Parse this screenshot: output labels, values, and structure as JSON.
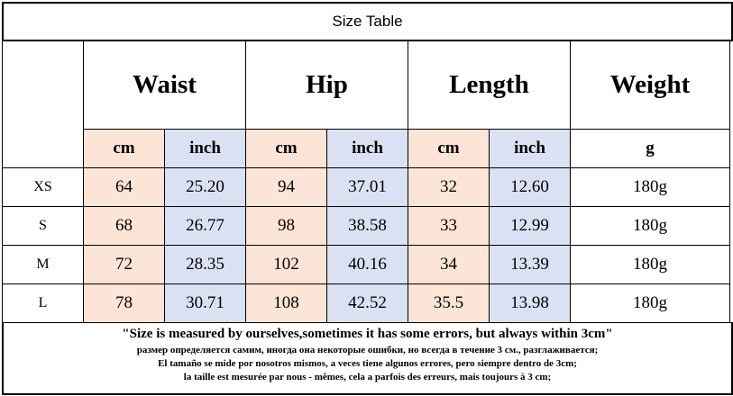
{
  "title": "Size Table",
  "groups": [
    "Waist",
    "Hip",
    "Length",
    "Weight"
  ],
  "units": [
    "cm",
    "inch",
    "cm",
    "inch",
    "cm",
    "inch",
    "g"
  ],
  "rows": [
    {
      "size": "XS",
      "values": [
        "64",
        "25.20",
        "94",
        "37.01",
        "32",
        "12.60",
        "180g"
      ]
    },
    {
      "size": "S",
      "values": [
        "68",
        "26.77",
        "98",
        "38.58",
        "33",
        "12.99",
        "180g"
      ]
    },
    {
      "size": "M",
      "values": [
        "72",
        "28.35",
        "102",
        "40.16",
        "34",
        "13.39",
        "180g"
      ]
    },
    {
      "size": "L",
      "values": [
        "78",
        "30.71",
        "108",
        "42.52",
        "35.5",
        "13.98",
        "180g"
      ]
    }
  ],
  "notes": [
    "\"Size is measured by ourselves,sometimes it has some errors, but always within 3cm\"",
    "размер определяется самим, иногда она некоторые ошибки, но всегда в течение 3 см., разглаживается;",
    "El tamaño se mide por nosotros mismos, a veces tiene algunos errores, pero siempre dentro de 3cm;",
    "la taille est mesurée par nous - mêmes, cela a parfois des erreurs, mais toujours à 3 cm;"
  ],
  "colors": {
    "cm": "#FCE4D6",
    "inch": "#D9E1F2"
  }
}
